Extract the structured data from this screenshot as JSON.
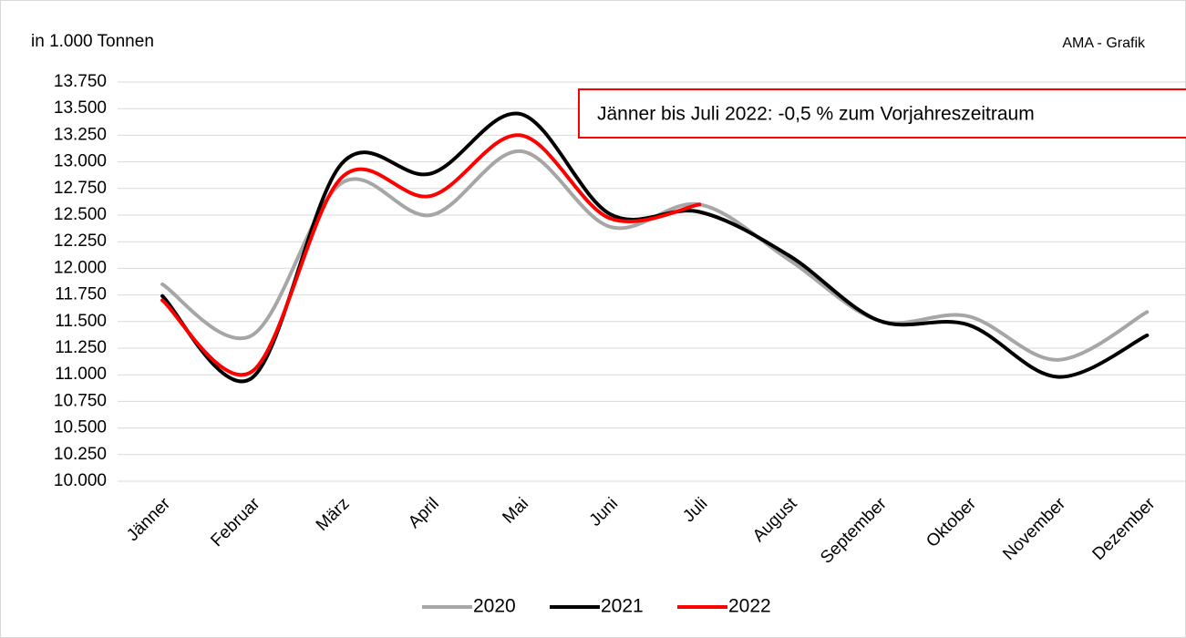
{
  "chart_data": {
    "type": "line",
    "unit_label": "in 1.000 Tonnen",
    "source": "AMA - Grafik",
    "annotation": "Jänner bis Juli 2022: -0,5 % zum Vorjahreszeitraum",
    "categories": [
      "Jänner",
      "Februar",
      "März",
      "April",
      "Mai",
      "Juni",
      "Juli",
      "August",
      "September",
      "Oktober",
      "November",
      "Dezember"
    ],
    "series": [
      {
        "name": "2020",
        "color": "#a6a6a6",
        "values": [
          11850,
          11370,
          12800,
          12500,
          13100,
          12390,
          12600,
          12080,
          11510,
          11550,
          11140,
          11590
        ]
      },
      {
        "name": "2021",
        "color": "#000000",
        "values": [
          11740,
          10970,
          12980,
          12890,
          13450,
          12510,
          12530,
          12120,
          11510,
          11470,
          10980,
          11370
        ]
      },
      {
        "name": "2022",
        "color": "#ff0000",
        "values": [
          11700,
          11030,
          12850,
          12680,
          13250,
          12470,
          12600,
          null,
          null,
          null,
          null,
          null
        ]
      }
    ],
    "ylim": [
      10000,
      13750
    ],
    "yticks": [
      {
        "value": 10000,
        "label": "10.000"
      },
      {
        "value": 10250,
        "label": "10.250"
      },
      {
        "value": 10500,
        "label": "10.500"
      },
      {
        "value": 10750,
        "label": "10.750"
      },
      {
        "value": 11000,
        "label": "11.000"
      },
      {
        "value": 11250,
        "label": "11.250"
      },
      {
        "value": 11500,
        "label": "11.500"
      },
      {
        "value": 11750,
        "label": "11.750"
      },
      {
        "value": 12000,
        "label": "12.000"
      },
      {
        "value": 12250,
        "label": "12.250"
      },
      {
        "value": 12500,
        "label": "12.500"
      },
      {
        "value": 12750,
        "label": "12.750"
      },
      {
        "value": 13000,
        "label": "13.000"
      },
      {
        "value": 13250,
        "label": "13.250"
      },
      {
        "value": 13500,
        "label": "13.500"
      },
      {
        "value": 13750,
        "label": "13.750"
      }
    ],
    "grid": true,
    "legend": "bottom"
  }
}
